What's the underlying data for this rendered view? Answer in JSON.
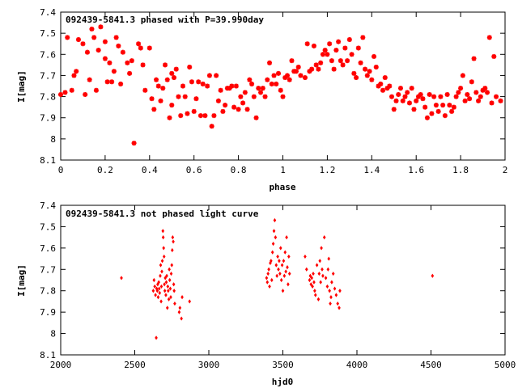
{
  "chart_data": [
    {
      "type": "scatter",
      "title": "092439-5841.3 phased with P=39.990day",
      "xlabel": "phase",
      "ylabel": "I[mag]",
      "xlim": [
        0,
        2
      ],
      "ylim": [
        7.4,
        8.1
      ],
      "y_inverted": true,
      "grid": false,
      "marker": "star",
      "color": "#ff0000",
      "xticks": [
        "0",
        "0.2",
        "0.4",
        "0.6",
        "0.8",
        "1",
        "1.2",
        "1.4",
        "1.6",
        "1.8",
        "2"
      ],
      "yticks": [
        "7.4",
        "7.5",
        "7.6",
        "7.7",
        "7.8",
        "7.9",
        "8",
        "8.1"
      ],
      "points": [
        [
          0.0,
          7.79
        ],
        [
          0.02,
          7.78
        ],
        [
          0.03,
          7.52
        ],
        [
          0.05,
          7.77
        ],
        [
          0.06,
          7.7
        ],
        [
          0.07,
          7.68
        ],
        [
          0.08,
          7.53
        ],
        [
          0.1,
          7.55
        ],
        [
          0.11,
          7.79
        ],
        [
          0.12,
          7.59
        ],
        [
          0.13,
          7.72
        ],
        [
          0.14,
          7.48
        ],
        [
          0.15,
          7.52
        ],
        [
          0.16,
          7.77
        ],
        [
          0.17,
          7.58
        ],
        [
          0.18,
          7.47
        ],
        [
          0.2,
          7.54
        ],
        [
          0.2,
          7.62
        ],
        [
          0.21,
          7.73
        ],
        [
          0.22,
          7.64
        ],
        [
          0.23,
          7.73
        ],
        [
          0.24,
          7.68
        ],
        [
          0.25,
          7.52
        ],
        [
          0.26,
          7.56
        ],
        [
          0.27,
          7.74
        ],
        [
          0.28,
          7.59
        ],
        [
          0.3,
          7.64
        ],
        [
          0.31,
          7.69
        ],
        [
          0.32,
          7.63
        ],
        [
          0.33,
          8.02
        ],
        [
          0.35,
          7.55
        ],
        [
          0.36,
          7.57
        ],
        [
          0.37,
          7.65
        ],
        [
          0.38,
          7.77
        ],
        [
          0.4,
          7.57
        ],
        [
          0.41,
          7.81
        ],
        [
          0.42,
          7.86
        ],
        [
          0.43,
          7.72
        ],
        [
          0.44,
          7.75
        ],
        [
          0.45,
          7.82
        ],
        [
          0.46,
          7.76
        ],
        [
          0.47,
          7.65
        ],
        [
          0.48,
          7.72
        ],
        [
          0.49,
          7.9
        ],
        [
          0.5,
          7.69
        ],
        [
          0.5,
          7.84
        ],
        [
          0.51,
          7.71
        ],
        [
          0.52,
          7.67
        ],
        [
          0.53,
          7.8
        ],
        [
          0.54,
          7.89
        ],
        [
          0.55,
          7.75
        ],
        [
          0.56,
          7.8
        ],
        [
          0.57,
          7.88
        ],
        [
          0.58,
          7.66
        ],
        [
          0.59,
          7.73
        ],
        [
          0.6,
          7.87
        ],
        [
          0.61,
          7.81
        ],
        [
          0.62,
          7.73
        ],
        [
          0.63,
          7.89
        ],
        [
          0.64,
          7.74
        ],
        [
          0.65,
          7.89
        ],
        [
          0.66,
          7.75
        ],
        [
          0.67,
          7.7
        ],
        [
          0.68,
          7.94
        ],
        [
          0.69,
          7.89
        ],
        [
          0.7,
          7.7
        ],
        [
          0.71,
          7.82
        ],
        [
          0.72,
          7.77
        ],
        [
          0.73,
          7.87
        ],
        [
          0.74,
          7.84
        ],
        [
          0.75,
          7.76
        ],
        [
          0.76,
          7.76
        ],
        [
          0.77,
          7.75
        ],
        [
          0.78,
          7.85
        ],
        [
          0.79,
          7.75
        ],
        [
          0.8,
          7.86
        ],
        [
          0.81,
          7.8
        ],
        [
          0.82,
          7.83
        ],
        [
          0.83,
          7.78
        ],
        [
          0.84,
          7.86
        ],
        [
          0.85,
          7.72
        ],
        [
          0.86,
          7.74
        ],
        [
          0.87,
          7.8
        ],
        [
          0.88,
          7.9
        ],
        [
          0.89,
          7.76
        ],
        [
          0.9,
          7.78
        ],
        [
          0.91,
          7.76
        ],
        [
          0.92,
          7.8
        ],
        [
          0.93,
          7.72
        ],
        [
          0.94,
          7.64
        ],
        [
          0.95,
          7.74
        ],
        [
          0.96,
          7.7
        ],
        [
          0.97,
          7.74
        ],
        [
          0.98,
          7.69
        ],
        [
          0.99,
          7.77
        ],
        [
          1.0,
          7.8
        ],
        [
          1.01,
          7.71
        ],
        [
          1.02,
          7.7
        ],
        [
          1.03,
          7.72
        ],
        [
          1.04,
          7.63
        ],
        [
          1.05,
          7.68
        ],
        [
          1.06,
          7.68
        ],
        [
          1.07,
          7.66
        ],
        [
          1.08,
          7.7
        ],
        [
          1.1,
          7.71
        ],
        [
          1.11,
          7.55
        ],
        [
          1.12,
          7.68
        ],
        [
          1.13,
          7.67
        ],
        [
          1.14,
          7.56
        ],
        [
          1.15,
          7.65
        ],
        [
          1.16,
          7.67
        ],
        [
          1.17,
          7.64
        ],
        [
          1.18,
          7.6
        ],
        [
          1.19,
          7.58
        ],
        [
          1.2,
          7.6
        ],
        [
          1.21,
          7.55
        ],
        [
          1.22,
          7.63
        ],
        [
          1.23,
          7.67
        ],
        [
          1.24,
          7.58
        ],
        [
          1.25,
          7.54
        ],
        [
          1.26,
          7.63
        ],
        [
          1.27,
          7.65
        ],
        [
          1.28,
          7.57
        ],
        [
          1.29,
          7.63
        ],
        [
          1.3,
          7.53
        ],
        [
          1.31,
          7.6
        ],
        [
          1.32,
          7.69
        ],
        [
          1.33,
          7.71
        ],
        [
          1.34,
          7.57
        ],
        [
          1.35,
          7.64
        ],
        [
          1.36,
          7.52
        ],
        [
          1.37,
          7.67
        ],
        [
          1.38,
          7.7
        ],
        [
          1.39,
          7.68
        ],
        [
          1.4,
          7.72
        ],
        [
          1.41,
          7.61
        ],
        [
          1.42,
          7.66
        ],
        [
          1.43,
          7.75
        ],
        [
          1.44,
          7.74
        ],
        [
          1.45,
          7.77
        ],
        [
          1.46,
          7.71
        ],
        [
          1.47,
          7.76
        ],
        [
          1.48,
          7.75
        ],
        [
          1.49,
          7.8
        ],
        [
          1.5,
          7.86
        ],
        [
          1.51,
          7.82
        ],
        [
          1.52,
          7.79
        ],
        [
          1.53,
          7.76
        ],
        [
          1.54,
          7.82
        ],
        [
          1.55,
          7.8
        ],
        [
          1.56,
          7.78
        ],
        [
          1.57,
          7.83
        ],
        [
          1.58,
          7.76
        ],
        [
          1.59,
          7.86
        ],
        [
          1.6,
          7.82
        ],
        [
          1.61,
          7.8
        ],
        [
          1.62,
          7.79
        ],
        [
          1.63,
          7.81
        ],
        [
          1.64,
          7.85
        ],
        [
          1.65,
          7.9
        ],
        [
          1.66,
          7.79
        ],
        [
          1.67,
          7.88
        ],
        [
          1.68,
          7.8
        ],
        [
          1.69,
          7.84
        ],
        [
          1.7,
          7.87
        ],
        [
          1.71,
          7.8
        ],
        [
          1.72,
          7.84
        ],
        [
          1.73,
          7.89
        ],
        [
          1.74,
          7.79
        ],
        [
          1.75,
          7.84
        ],
        [
          1.76,
          7.87
        ],
        [
          1.77,
          7.85
        ],
        [
          1.78,
          7.8
        ],
        [
          1.79,
          7.78
        ],
        [
          1.8,
          7.76
        ],
        [
          1.81,
          7.7
        ],
        [
          1.82,
          7.82
        ],
        [
          1.83,
          7.79
        ],
        [
          1.84,
          7.81
        ],
        [
          1.85,
          7.73
        ],
        [
          1.86,
          7.62
        ],
        [
          1.87,
          7.78
        ],
        [
          1.88,
          7.82
        ],
        [
          1.89,
          7.8
        ],
        [
          1.9,
          7.77
        ],
        [
          1.91,
          7.76
        ],
        [
          1.92,
          7.78
        ],
        [
          1.93,
          7.52
        ],
        [
          1.94,
          7.83
        ],
        [
          1.95,
          7.61
        ],
        [
          1.96,
          7.8
        ],
        [
          1.98,
          7.82
        ]
      ]
    },
    {
      "type": "scatter",
      "title": "092439-5841.3 not phased light curve",
      "xlabel": "hjd0",
      "ylabel": "I[mag]",
      "xlim": [
        2000,
        5000
      ],
      "ylim": [
        7.4,
        8.1
      ],
      "y_inverted": true,
      "grid": false,
      "marker": "diamond",
      "color": "#ff0000",
      "xticks": [
        "2000",
        "2500",
        "3000",
        "3500",
        "4000",
        "4500",
        "5000"
      ],
      "yticks": [
        "7.4",
        "7.5",
        "7.6",
        "7.7",
        "7.8",
        "7.9",
        "8",
        "8.1"
      ],
      "points": [
        [
          2410,
          7.74
        ],
        [
          2625,
          7.8
        ],
        [
          2630,
          7.75
        ],
        [
          2635,
          7.78
        ],
        [
          2640,
          7.82
        ],
        [
          2645,
          8.02
        ],
        [
          2648,
          7.79
        ],
        [
          2652,
          7.8
        ],
        [
          2655,
          7.77
        ],
        [
          2658,
          7.83
        ],
        [
          2662,
          7.76
        ],
        [
          2665,
          7.79
        ],
        [
          2668,
          7.81
        ],
        [
          2672,
          7.73
        ],
        [
          2675,
          7.68
        ],
        [
          2678,
          7.85
        ],
        [
          2680,
          7.78
        ],
        [
          2683,
          7.71
        ],
        [
          2686,
          7.66
        ],
        [
          2690,
          7.52
        ],
        [
          2692,
          7.55
        ],
        [
          2695,
          7.6
        ],
        [
          2698,
          7.64
        ],
        [
          2700,
          7.77
        ],
        [
          2703,
          7.8
        ],
        [
          2706,
          7.74
        ],
        [
          2710,
          7.82
        ],
        [
          2713,
          7.76
        ],
        [
          2716,
          7.73
        ],
        [
          2720,
          7.88
        ],
        [
          2723,
          7.78
        ],
        [
          2726,
          7.8
        ],
        [
          2730,
          7.84
        ],
        [
          2733,
          7.7
        ],
        [
          2736,
          7.75
        ],
        [
          2740,
          7.79
        ],
        [
          2743,
          7.83
        ],
        [
          2746,
          7.72
        ],
        [
          2750,
          7.68
        ],
        [
          2753,
          7.61
        ],
        [
          2756,
          7.55
        ],
        [
          2760,
          7.57
        ],
        [
          2763,
          7.77
        ],
        [
          2766,
          7.8
        ],
        [
          2770,
          7.86
        ],
        [
          2800,
          7.9
        ],
        [
          2805,
          7.88
        ],
        [
          2815,
          7.93
        ],
        [
          2820,
          7.83
        ],
        [
          2870,
          7.85
        ],
        [
          3390,
          7.74
        ],
        [
          3395,
          7.76
        ],
        [
          3400,
          7.72
        ],
        [
          3405,
          7.7
        ],
        [
          3410,
          7.78
        ],
        [
          3415,
          7.67
        ],
        [
          3420,
          7.66
        ],
        [
          3425,
          7.75
        ],
        [
          3430,
          7.62
        ],
        [
          3435,
          7.58
        ],
        [
          3440,
          7.52
        ],
        [
          3445,
          7.47
        ],
        [
          3450,
          7.55
        ],
        [
          3455,
          7.68
        ],
        [
          3460,
          7.73
        ],
        [
          3465,
          7.64
        ],
        [
          3470,
          7.7
        ],
        [
          3475,
          7.66
        ],
        [
          3480,
          7.72
        ],
        [
          3485,
          7.6
        ],
        [
          3490,
          7.75
        ],
        [
          3495,
          7.68
        ],
        [
          3500,
          7.8
        ],
        [
          3505,
          7.66
        ],
        [
          3510,
          7.73
        ],
        [
          3515,
          7.62
        ],
        [
          3520,
          7.71
        ],
        [
          3525,
          7.55
        ],
        [
          3530,
          7.69
        ],
        [
          3535,
          7.77
        ],
        [
          3540,
          7.64
        ],
        [
          3545,
          7.72
        ],
        [
          3650,
          7.64
        ],
        [
          3660,
          7.7
        ],
        [
          3680,
          7.75
        ],
        [
          3685,
          7.73
        ],
        [
          3690,
          7.77
        ],
        [
          3695,
          7.74
        ],
        [
          3700,
          7.78
        ],
        [
          3705,
          7.72
        ],
        [
          3710,
          7.76
        ],
        [
          3715,
          7.8
        ],
        [
          3720,
          7.82
        ],
        [
          3730,
          7.68
        ],
        [
          3740,
          7.84
        ],
        [
          3745,
          7.72
        ],
        [
          3750,
          7.66
        ],
        [
          3755,
          7.76
        ],
        [
          3760,
          7.6
        ],
        [
          3765,
          7.7
        ],
        [
          3770,
          7.73
        ],
        [
          3780,
          7.55
        ],
        [
          3790,
          7.74
        ],
        [
          3800,
          7.78
        ],
        [
          3805,
          7.7
        ],
        [
          3810,
          7.65
        ],
        [
          3815,
          7.8
        ],
        [
          3820,
          7.86
        ],
        [
          3825,
          7.83
        ],
        [
          3830,
          7.76
        ],
        [
          3840,
          7.72
        ],
        [
          3850,
          7.79
        ],
        [
          3860,
          7.82
        ],
        [
          3870,
          7.86
        ],
        [
          3880,
          7.88
        ],
        [
          3885,
          7.8
        ],
        [
          4510,
          7.73
        ]
      ]
    }
  ]
}
